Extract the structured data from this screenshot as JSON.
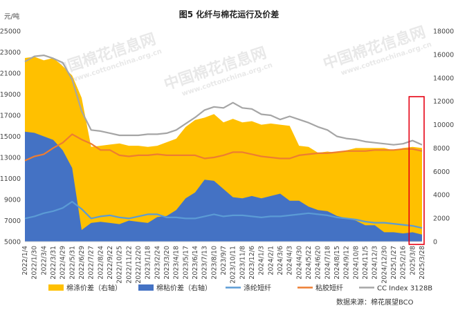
{
  "chart_data": {
    "type": "line",
    "title": "图5  化纤与棉花运行及价差",
    "left_unit": "元/吨",
    "source": "数据来源：棉花展望BCO",
    "watermark": "中国棉花信息网",
    "watermark_url": "www.cottonchina.org.cn",
    "y_left": {
      "min": 5000,
      "max": 25000,
      "step": 2000,
      "ticks": [
        "5000",
        "7000",
        "9000",
        "11000",
        "13000",
        "15000",
        "17000",
        "19000",
        "21000",
        "23000",
        "25000"
      ]
    },
    "y_right": {
      "min": 0,
      "max": 18000,
      "step": 2000,
      "ticks": [
        "0",
        "2000",
        "4000",
        "6000",
        "8000",
        "10000",
        "12000",
        "14000",
        "16000",
        "18000"
      ]
    },
    "x_labels": [
      "2022/1/4",
      "2022/1/30",
      "2022/3/4",
      "2022/3/31",
      "2022/4/29",
      "2022/5/31",
      "2022/6/29",
      "2022/7/27",
      "2022/8/24",
      "2022/9/22",
      "2022/10/25",
      "2022/11/22",
      "2022/12/20",
      "2023/1/18",
      "2023/2/24",
      "2023/3/20",
      "2023/4/18",
      "2023/5/17",
      "2023/6/14",
      "2023/7/13",
      "2023/8/10",
      "2023/9/7",
      "2023/10/11",
      "2023/11/8",
      "2023/12/6",
      "2024/1/3",
      "2024/2/1",
      "2024/3/6",
      "2024/4/3",
      "2024/4/30",
      "2024/5/22",
      "2024/6/20",
      "2024/7/18",
      "2024/8/15",
      "2024/9/12",
      "2024/10/8",
      "2024/11/5",
      "2024/12/3",
      "2024/12/30",
      "2025/1/27",
      "2025/2/16",
      "2025/3/8",
      "2025/3/28"
    ],
    "series": [
      {
        "name": "棉涤价差（右轴）",
        "axis": "right",
        "kind": "area",
        "color": "#ffc000",
        "values": [
          15700,
          15800,
          15500,
          15700,
          15000,
          14200,
          12300,
          8100,
          8200,
          8300,
          8400,
          8200,
          8200,
          8100,
          8200,
          8500,
          8800,
          9800,
          10400,
          10600,
          10900,
          10200,
          10500,
          10200,
          10300,
          10000,
          10100,
          10000,
          9900,
          8200,
          8100,
          7600,
          7700,
          7600,
          7800,
          8000,
          8000,
          8000,
          8000,
          7800,
          8000,
          8100,
          8000
        ]
      },
      {
        "name": "棉粘价差（右轴）",
        "axis": "right",
        "kind": "area",
        "color": "#4472c4",
        "values": [
          9400,
          9300,
          9000,
          8700,
          7800,
          6300,
          1000,
          1600,
          1700,
          1600,
          1500,
          1800,
          1700,
          1600,
          2100,
          2200,
          2700,
          3700,
          4200,
          5300,
          5200,
          4500,
          3800,
          3700,
          3900,
          3700,
          3900,
          4100,
          3500,
          3500,
          3000,
          2700,
          2600,
          2200,
          2000,
          1800,
          1400,
          1400,
          800,
          800,
          700,
          800,
          600
        ]
      },
      {
        "name": "涤纶短纤",
        "axis": "left",
        "kind": "line",
        "color": "#5b9bd5",
        "values": [
          7200,
          7400,
          7700,
          7900,
          8200,
          8800,
          8100,
          7200,
          7400,
          7500,
          7300,
          7200,
          7400,
          7600,
          7600,
          7300,
          7300,
          7200,
          7200,
          7400,
          7600,
          7400,
          7500,
          7500,
          7400,
          7300,
          7400,
          7400,
          7500,
          7600,
          7700,
          7600,
          7500,
          7300,
          7200,
          7100,
          6900,
          6800,
          6800,
          6700,
          6600,
          6500,
          6300
        ]
      },
      {
        "name": "粘胶短纤",
        "axis": "left",
        "kind": "line",
        "color": "#ed7d31",
        "values": [
          12700,
          13100,
          13300,
          13900,
          14400,
          15200,
          14700,
          14300,
          13700,
          13700,
          13200,
          13100,
          13200,
          13200,
          13300,
          13200,
          13200,
          13200,
          13200,
          12900,
          13000,
          13200,
          13500,
          13500,
          13300,
          13100,
          13000,
          12900,
          12900,
          13200,
          13300,
          13400,
          13400,
          13500,
          13600,
          13600,
          13600,
          13700,
          13700,
          13700,
          13800,
          13800,
          13600
        ]
      },
      {
        "name": "CC Index 3128B",
        "axis": "left",
        "kind": "line",
        "color": "#a5a5a5",
        "values": [
          22100,
          22600,
          22700,
          22400,
          22000,
          20400,
          17400,
          15600,
          15500,
          15300,
          15100,
          15100,
          15100,
          15200,
          15200,
          15300,
          15600,
          16200,
          16800,
          17500,
          17800,
          17700,
          18200,
          17700,
          17600,
          17100,
          17000,
          16600,
          16900,
          16600,
          16300,
          15900,
          15600,
          15000,
          14800,
          14700,
          14500,
          14400,
          14300,
          14200,
          14300,
          14600,
          14200
        ]
      }
    ],
    "highlight_box": {
      "color": "#e60012",
      "from_index": 41
    },
    "legend_position": "bottom",
    "grid": false
  }
}
